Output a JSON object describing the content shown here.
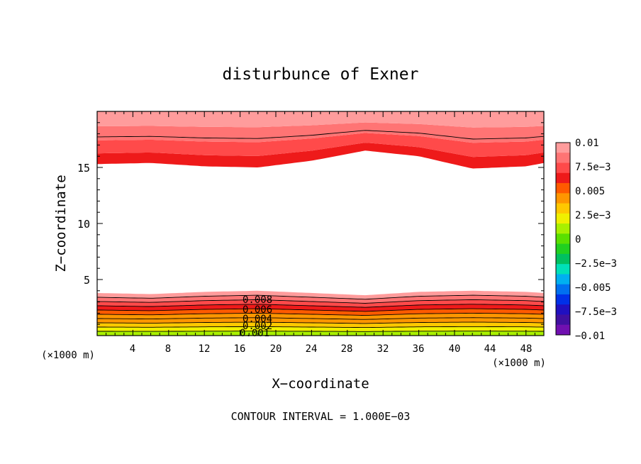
{
  "chart_data": {
    "type": "heatmap",
    "title": "disturbunce of Exner",
    "xlabel": "X−coordinate",
    "ylabel": "Z−coordinate",
    "x_unit": "(×1000 m)",
    "y_unit": "(×1000 m)",
    "xlim": [
      0,
      50
    ],
    "ylim": [
      0,
      20
    ],
    "x_ticks": [
      4,
      8,
      12,
      16,
      20,
      24,
      28,
      32,
      36,
      40,
      44,
      48
    ],
    "y_ticks": [
      5,
      10,
      15
    ],
    "footer": "CONTOUR INTERVAL = 1.000E−03",
    "contour_interval": 0.001,
    "contour_labels": [
      "0.008",
      "0.006",
      "0.004",
      "0.002",
      "0.001"
    ],
    "upper_layer": {
      "x": [
        0,
        6,
        12,
        18,
        24,
        30,
        36,
        42,
        48,
        50
      ],
      "bottom_z": [
        15.3,
        15.4,
        15.1,
        15.0,
        15.6,
        16.5,
        16.0,
        14.9,
        15.1,
        15.4
      ],
      "top_z": 20,
      "levels": [
        0.007,
        0.008,
        0.009,
        0.01
      ]
    },
    "lower_layer": {
      "x": [
        0,
        6,
        12,
        18,
        24,
        30,
        36,
        42,
        48,
        50
      ],
      "top_z": [
        3.8,
        3.7,
        3.9,
        4.0,
        3.8,
        3.6,
        3.9,
        4.0,
        3.9,
        3.8
      ],
      "bottom_z": 0,
      "levels": [
        0.001,
        0.002,
        0.003,
        0.004,
        0.005,
        0.006,
        0.007,
        0.008,
        0.009,
        0.01
      ]
    },
    "colorbar": {
      "labels": [
        "0.01",
        "7.5e−3",
        "0.005",
        "2.5e−3",
        "0",
        "−2.5e−3",
        "−0.005",
        "−7.5e−3",
        "−0.01"
      ],
      "colors_top_to_bottom": [
        "#ff9c9c",
        "#ff7474",
        "#ff4a4a",
        "#ee1a1a",
        "#ff5a00",
        "#ff9600",
        "#ffc800",
        "#f0f000",
        "#a8f000",
        "#5ae000",
        "#20d020",
        "#00c060",
        "#00e0b8",
        "#00b0f0",
        "#0070f0",
        "#0030e8",
        "#2010c0",
        "#4010a0",
        "#7010b0"
      ]
    }
  }
}
